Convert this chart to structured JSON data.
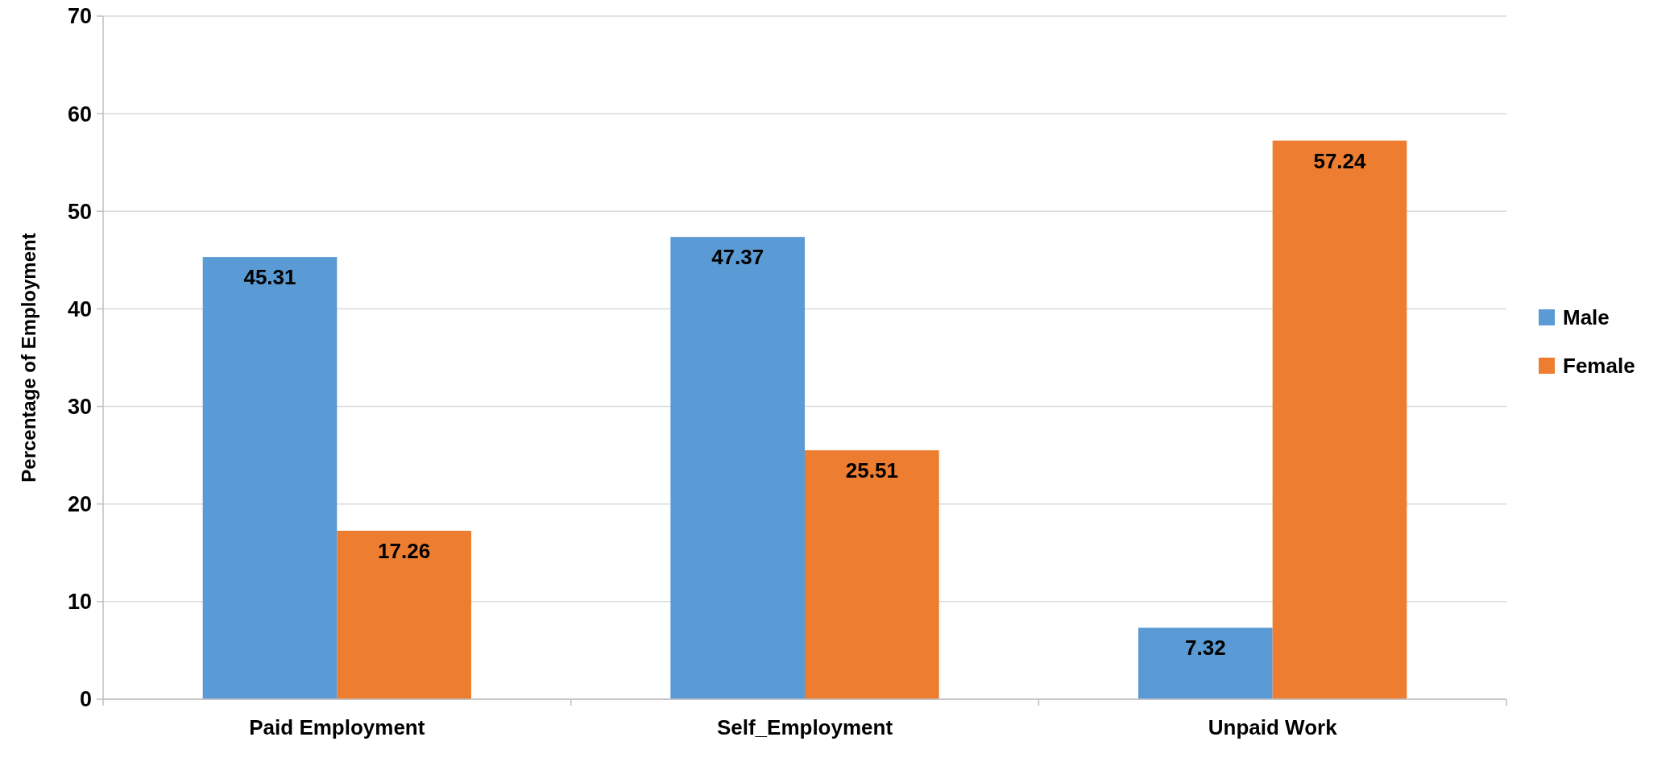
{
  "chart_data": {
    "type": "bar",
    "ylabel": "Percentage of Employment",
    "categories": [
      "Paid Employment",
      "Self_Employment",
      "Unpaid Work"
    ],
    "series": [
      {
        "name": "Male",
        "color": "#5b9bd5",
        "values": [
          45.31,
          47.37,
          7.32
        ]
      },
      {
        "name": "Female",
        "color": "#ed7d31",
        "values": [
          17.26,
          25.51,
          57.24
        ]
      }
    ],
    "ylim": [
      0,
      70
    ],
    "yticks": [
      0,
      10,
      20,
      30,
      40,
      50,
      60,
      70
    ],
    "grid": "y",
    "legend": "right",
    "data_labels": true
  }
}
